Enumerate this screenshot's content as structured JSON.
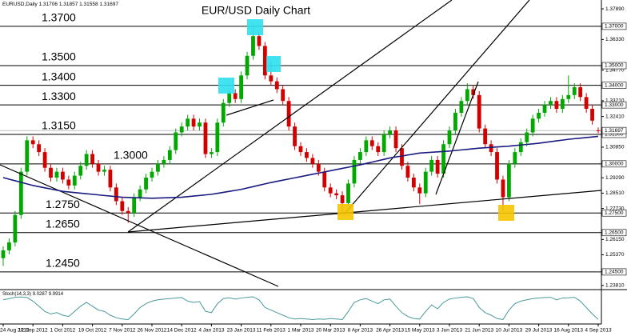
{
  "chart_data": {
    "type": "candlestick",
    "title": "EUR/USD Daily Chart",
    "symbol": "EURUSD,Daily",
    "up_color": "#00a800",
    "down_color": "#d40000",
    "ylim": [
      1.236,
      1.3834
    ],
    "categories": [
      "24 Aug 2012",
      null,
      null,
      null,
      null,
      "12 Sep 2012",
      null,
      null,
      null,
      null,
      "1 Oct 2012",
      null,
      null,
      null,
      null,
      "19 Oct 2012",
      null,
      null,
      null,
      null,
      "7 Nov 2012",
      null,
      null,
      null,
      null,
      "26 Nov 2012",
      null,
      null,
      null,
      null,
      "14 Dec 2012",
      null,
      null,
      null,
      null,
      "4 Jan 2013",
      null,
      null,
      null,
      null,
      "23 Jan 2013",
      null,
      null,
      null,
      null,
      "11 Feb 2013",
      null,
      null,
      null,
      null,
      "1 Mar 2013",
      null,
      null,
      null,
      null,
      "20 Mar 2013",
      null,
      null,
      null,
      null,
      "8 Apr 2013",
      null,
      null,
      null,
      null,
      "26 Apr 2013",
      null,
      null,
      null,
      null,
      "15 May 2013",
      null,
      null,
      null,
      null,
      "3 Jun 2013",
      null,
      null,
      null,
      null,
      "21 Jun 2013",
      null,
      null,
      null,
      null,
      "10 Jul 2013",
      null,
      null,
      null,
      null,
      "29 Jul 2013",
      null,
      null,
      null,
      null,
      "16 Aug 2013",
      null,
      null,
      null,
      null,
      "4 Sep 2013"
    ],
    "open": [
      1.252,
      1.256,
      1.26,
      1.274,
      1.296,
      1.312,
      1.31,
      1.306,
      1.298,
      1.293,
      1.296,
      1.292,
      1.289,
      1.294,
      1.299,
      1.305,
      1.3,
      1.296,
      1.297,
      1.288,
      1.281,
      1.276,
      1.275,
      1.283,
      1.287,
      1.293,
      1.296,
      1.3,
      1.302,
      1.307,
      1.316,
      1.319,
      1.323,
      1.319,
      1.321,
      1.305,
      1.306,
      1.321,
      1.331,
      1.336,
      1.333,
      1.345,
      1.355,
      1.365,
      1.36,
      1.345,
      1.342,
      1.338,
      1.332,
      1.319,
      1.309,
      1.306,
      1.303,
      1.3,
      1.296,
      1.288,
      1.285,
      1.284,
      1.28,
      1.29,
      1.302,
      1.306,
      1.312,
      1.309,
      1.306,
      1.315,
      1.317,
      1.308,
      1.299,
      1.293,
      1.288,
      1.285,
      1.296,
      1.302,
      1.295,
      1.31,
      1.317,
      1.326,
      1.332,
      1.338,
      1.335,
      1.318,
      1.31,
      1.306,
      1.292,
      1.283,
      1.3,
      1.306,
      1.311,
      1.316,
      1.323,
      1.326,
      1.33,
      1.332,
      1.328,
      1.333,
      1.335,
      1.339,
      1.334,
      1.328,
      1.31706
    ],
    "high": [
      1.258,
      1.262,
      1.276,
      1.298,
      1.314,
      1.314,
      1.312,
      1.308,
      1.3,
      1.298,
      1.298,
      1.294,
      1.296,
      1.301,
      1.307,
      1.307,
      1.302,
      1.299,
      1.299,
      1.29,
      1.283,
      1.278,
      1.285,
      1.289,
      1.295,
      1.298,
      1.302,
      1.304,
      1.309,
      1.318,
      1.321,
      1.325,
      1.325,
      1.323,
      1.323,
      1.308,
      1.323,
      1.333,
      1.338,
      1.338,
      1.347,
      1.357,
      1.371,
      1.367,
      1.362,
      1.352,
      1.344,
      1.34,
      1.334,
      1.321,
      1.311,
      1.308,
      1.305,
      1.302,
      1.298,
      1.29,
      1.287,
      1.286,
      1.292,
      1.304,
      1.308,
      1.314,
      1.314,
      1.311,
      1.317,
      1.319,
      1.319,
      1.31,
      1.301,
      1.295,
      1.29,
      1.298,
      1.304,
      1.304,
      1.312,
      1.319,
      1.328,
      1.334,
      1.341,
      1.34,
      1.337,
      1.32,
      1.312,
      1.308,
      1.294,
      1.302,
      1.308,
      1.313,
      1.318,
      1.325,
      1.328,
      1.332,
      1.334,
      1.334,
      1.335,
      1.345,
      1.341,
      1.341,
      1.336,
      1.33,
      1.31857
    ],
    "low": [
      1.248,
      1.254,
      1.258,
      1.272,
      1.294,
      1.308,
      1.304,
      1.296,
      1.291,
      1.291,
      1.29,
      1.287,
      1.287,
      1.292,
      1.297,
      1.298,
      1.294,
      1.294,
      1.286,
      1.279,
      1.274,
      1.27,
      1.273,
      1.281,
      1.285,
      1.291,
      1.294,
      1.298,
      1.3,
      1.305,
      1.314,
      1.317,
      1.317,
      1.317,
      1.303,
      1.303,
      1.304,
      1.319,
      1.329,
      1.331,
      1.331,
      1.343,
      1.353,
      1.358,
      1.343,
      1.34,
      1.336,
      1.33,
      1.317,
      1.307,
      1.304,
      1.301,
      1.298,
      1.294,
      1.286,
      1.283,
      1.282,
      1.2745,
      1.278,
      1.288,
      1.3,
      1.304,
      1.307,
      1.304,
      1.304,
      1.313,
      1.306,
      1.297,
      1.291,
      1.286,
      1.2795,
      1.283,
      1.294,
      1.293,
      1.293,
      1.308,
      1.315,
      1.324,
      1.33,
      1.333,
      1.316,
      1.308,
      1.304,
      1.29,
      1.2755,
      1.281,
      1.298,
      1.304,
      1.309,
      1.314,
      1.321,
      1.324,
      1.328,
      1.326,
      1.326,
      1.331,
      1.333,
      1.332,
      1.326,
      1.32,
      1.31558
    ],
    "close": [
      1.256,
      1.26,
      1.274,
      1.296,
      1.312,
      1.31,
      1.306,
      1.298,
      1.293,
      1.296,
      1.292,
      1.289,
      1.294,
      1.299,
      1.305,
      1.3,
      1.296,
      1.297,
      1.288,
      1.281,
      1.276,
      1.275,
      1.283,
      1.287,
      1.293,
      1.296,
      1.3,
      1.302,
      1.307,
      1.316,
      1.319,
      1.323,
      1.319,
      1.321,
      1.305,
      1.306,
      1.321,
      1.331,
      1.336,
      1.333,
      1.345,
      1.355,
      1.365,
      1.36,
      1.345,
      1.342,
      1.338,
      1.332,
      1.319,
      1.309,
      1.306,
      1.303,
      1.3,
      1.296,
      1.288,
      1.285,
      1.284,
      1.28,
      1.29,
      1.302,
      1.306,
      1.312,
      1.309,
      1.306,
      1.315,
      1.317,
      1.308,
      1.299,
      1.293,
      1.288,
      1.285,
      1.296,
      1.302,
      1.295,
      1.31,
      1.317,
      1.326,
      1.332,
      1.338,
      1.335,
      1.318,
      1.31,
      1.306,
      1.292,
      1.283,
      1.3,
      1.306,
      1.311,
      1.316,
      1.323,
      1.326,
      1.33,
      1.332,
      1.328,
      1.333,
      1.335,
      1.339,
      1.334,
      1.328,
      1.322,
      1.31697
    ],
    "moving_average": {
      "color": "#1a1a80",
      "values": [
        1.293,
        1.2922,
        1.2914,
        1.2906,
        1.2898,
        1.289,
        1.2884,
        1.2878,
        1.2872,
        1.2866,
        1.286,
        1.2857,
        1.2854,
        1.2851,
        1.2848,
        1.2845,
        1.2842,
        1.2839,
        1.2836,
        1.2833,
        1.283,
        1.2829,
        1.2828,
        1.2827,
        1.2826,
        1.2825,
        1.2826,
        1.2827,
        1.2828,
        1.2829,
        1.283,
        1.2833,
        1.2836,
        1.2839,
        1.2842,
        1.2845,
        1.285,
        1.2855,
        1.286,
        1.2865,
        1.287,
        1.2877,
        1.2884,
        1.2891,
        1.2898,
        1.2905,
        1.2911,
        1.2917,
        1.2923,
        1.2929,
        1.2935,
        1.2941,
        1.2947,
        1.2953,
        1.2959,
        1.2965,
        1.2971,
        1.2977,
        1.2983,
        1.2989,
        1.2995,
        1.3002,
        1.3009,
        1.3016,
        1.3023,
        1.303,
        1.3035,
        1.304,
        1.3045,
        1.305,
        1.3055,
        1.3057,
        1.3059,
        1.3061,
        1.3063,
        1.3065,
        1.3068,
        1.3071,
        1.3074,
        1.3077,
        1.308,
        1.3082,
        1.3084,
        1.3086,
        1.3088,
        1.309,
        1.3093,
        1.3096,
        1.3099,
        1.3102,
        1.3105,
        1.3109,
        1.3113,
        1.3117,
        1.3121,
        1.3125,
        1.3128,
        1.3131,
        1.3134,
        1.3137,
        1.314
      ]
    },
    "current_price": 1.31697,
    "levels": [
      {
        "value": 1.37,
        "label": "1.3700"
      },
      {
        "value": 1.35,
        "label": "1.3500"
      },
      {
        "value": 1.34,
        "label": "1.3400"
      },
      {
        "value": 1.33,
        "label": "1.3300"
      },
      {
        "value": 1.315,
        "label": "1.3150"
      },
      {
        "value": 1.3,
        "label": "1.3000"
      },
      {
        "value": 1.275,
        "label": "1.2750"
      },
      {
        "value": 1.265,
        "label": "1.2650"
      },
      {
        "value": 1.245,
        "label": "1.2450"
      }
    ],
    "level_ticks": [
      {
        "value": 1.37,
        "label": "1.37000"
      },
      {
        "value": 1.35,
        "label": "1.35000"
      },
      {
        "value": 1.34,
        "label": "1.34000"
      },
      {
        "value": 1.33,
        "label": "1.33000"
      },
      {
        "value": 1.315,
        "label": "1.31500"
      },
      {
        "value": 1.3,
        "label": "1.30000"
      },
      {
        "value": 1.275,
        "label": "1.27500"
      },
      {
        "value": 1.265,
        "label": "1.26500"
      },
      {
        "value": 1.245,
        "label": "1.24500"
      }
    ],
    "yticks": [
      {
        "value": 1.3789,
        "label": "1.37890"
      },
      {
        "value": 1.3633,
        "label": "1.36330"
      },
      {
        "value": 1.3477,
        "label": "1.34770"
      },
      {
        "value": 1.3321,
        "label": "1.33210"
      },
      {
        "value": 1.3241,
        "label": "1.32410"
      },
      {
        "value": 1.3085,
        "label": "1.30850"
      },
      {
        "value": 1.2929,
        "label": "1.29290"
      },
      {
        "value": 1.2851,
        "label": "1.28510"
      },
      {
        "value": 1.2773,
        "label": "1.27730"
      },
      {
        "value": 1.2615,
        "label": "1.26150"
      },
      {
        "value": 1.2537,
        "label": "1.25370"
      },
      {
        "value": 1.2381,
        "label": "1.23810"
      }
    ],
    "stochastic": {
      "name": "Stoch(14,3,3)",
      "main": 9.0287,
      "signal": 9.9914,
      "color": "#4a9a9a",
      "ylim": [
        0,
        100
      ],
      "values": [
        85,
        90,
        95,
        96,
        94,
        80,
        60,
        40,
        30,
        35,
        25,
        20,
        40,
        60,
        75,
        60,
        45,
        40,
        25,
        15,
        10,
        8,
        30,
        55,
        70,
        80,
        85,
        88,
        90,
        92,
        94,
        80,
        75,
        78,
        40,
        35,
        70,
        90,
        93,
        88,
        92,
        95,
        97,
        85,
        55,
        45,
        35,
        25,
        15,
        10,
        12,
        10,
        8,
        10,
        9,
        12,
        10,
        8,
        40,
        75,
        85,
        90,
        80,
        70,
        85,
        88,
        60,
        35,
        20,
        12,
        10,
        40,
        65,
        50,
        75,
        88,
        92,
        95,
        97,
        90,
        55,
        35,
        25,
        12,
        8,
        45,
        70,
        80,
        85,
        90,
        92,
        94,
        95,
        85,
        92,
        93,
        95,
        80,
        55,
        30,
        9.0287
      ]
    }
  }
}
